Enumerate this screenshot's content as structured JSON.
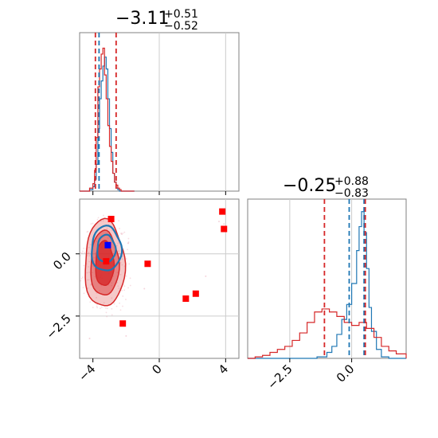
{
  "chart_data": [
    {
      "type": "histogram",
      "panel": "marginal-param-1",
      "title": {
        "value": "−3.11",
        "upper": "+0.51",
        "lower": "−0.52"
      },
      "xlim": [
        -4.8,
        4.8
      ],
      "grid": true,
      "series": [
        {
          "color": "#1f77b4",
          "style": "step",
          "bins": [
            -4.8,
            -4.5,
            -4.2,
            -4.0,
            -3.9,
            -3.8,
            -3.7,
            -3.6,
            -3.5,
            -3.4,
            -3.3,
            -3.2,
            -3.1,
            -3.0,
            -2.9,
            -2.8,
            -2.7,
            -2.6,
            -2.5,
            -2.4,
            -2.3,
            -2.1,
            -1.8,
            -1.5
          ],
          "counts": [
            0,
            0,
            0.01,
            0.03,
            0.08,
            0.18,
            0.42,
            0.62,
            0.74,
            0.84,
            0.9,
            0.82,
            0.62,
            0.42,
            0.26,
            0.12,
            0.06,
            0.02,
            0.01,
            0,
            0,
            0,
            0
          ]
        },
        {
          "color": "#d62728",
          "style": "step",
          "bins": [
            -4.8,
            -4.5,
            -4.2,
            -4.0,
            -3.9,
            -3.8,
            -3.7,
            -3.6,
            -3.5,
            -3.4,
            -3.3,
            -3.2,
            -3.1,
            -3.0,
            -2.9,
            -2.8,
            -2.7,
            -2.6,
            -2.5,
            -2.4,
            -2.3,
            -2.1,
            -1.8,
            -1.5
          ],
          "counts": [
            0,
            0,
            0.02,
            0.05,
            0.14,
            0.36,
            0.7,
            0.82,
            0.92,
            0.96,
            0.78,
            0.62,
            0.44,
            0.3,
            0.2,
            0.12,
            0.06,
            0.04,
            0.02,
            0.01,
            0,
            0,
            0
          ]
        }
      ],
      "vlines": [
        {
          "x": -3.85,
          "color": "#d62728"
        },
        {
          "x": -3.63,
          "color": "#1f77b4"
        },
        {
          "x": -2.6,
          "color": "#d62728"
        }
      ]
    },
    {
      "type": "scatter",
      "panel": "joint",
      "xlim": [
        -4.8,
        4.8
      ],
      "ylim": [
        -4.2,
        2.2
      ],
      "xticks": [
        "−4",
        "0",
        "4"
      ],
      "yticks": [
        "0.0",
        "−2.5"
      ],
      "xtick_values": [
        -4,
        0,
        4
      ],
      "ytick_values": [
        0,
        -2.5
      ],
      "grid": true,
      "contours": [
        {
          "color": "#d62728",
          "center": [
            -3.3,
            -0.4
          ],
          "radii": [
            [
              1.2,
              1.75
            ],
            [
              0.85,
              1.3
            ],
            [
              0.55,
              0.9
            ]
          ],
          "alphas": [
            0.25,
            0.45,
            0.8
          ]
        },
        {
          "color": "#1f77b4",
          "center": [
            -3.2,
            0.2
          ],
          "radii": [
            [
              0.9,
              0.9
            ],
            [
              0.55,
              0.55
            ]
          ],
          "alphas": [
            0.25,
            0.45
          ]
        }
      ],
      "points": [
        {
          "x": 3.8,
          "y": 1.7,
          "color": "#ff0000"
        },
        {
          "x": 3.9,
          "y": 1.0,
          "color": "#ff0000"
        },
        {
          "x": -2.9,
          "y": 1.4,
          "color": "#ff0000"
        },
        {
          "x": -0.7,
          "y": -0.4,
          "color": "#ff0000"
        },
        {
          "x": -3.2,
          "y": -0.3,
          "color": "#ff0000"
        },
        {
          "x": 2.2,
          "y": -1.6,
          "color": "#ff0000"
        },
        {
          "x": 1.6,
          "y": -1.8,
          "color": "#ff0000"
        },
        {
          "x": -2.2,
          "y": -2.8,
          "color": "#ff0000"
        },
        {
          "x": -3.1,
          "y": 0.35,
          "color": "#0000ff"
        }
      ]
    },
    {
      "type": "histogram",
      "panel": "marginal-param-2",
      "title": {
        "value": "−0.25",
        "upper": "+0.88",
        "lower": "−0.83"
      },
      "xlim": [
        -4.2,
        2.2
      ],
      "xticks": [
        "−2.5",
        "0.0"
      ],
      "xtick_values": [
        -2.5,
        0
      ],
      "grid": true,
      "series": [
        {
          "color": "#1f77b4",
          "style": "step",
          "bins": [
            -4.2,
            -3.6,
            -3.0,
            -2.4,
            -1.8,
            -1.4,
            -1.0,
            -0.8,
            -0.6,
            -0.4,
            -0.2,
            0.0,
            0.2,
            0.3,
            0.4,
            0.5,
            0.6,
            0.7,
            0.8,
            1.0,
            1.2,
            1.5,
            2.2
          ],
          "counts": [
            0,
            0,
            0,
            0,
            0,
            0.01,
            0.04,
            0.08,
            0.16,
            0.26,
            0.36,
            0.5,
            0.72,
            0.88,
            0.98,
            0.84,
            0.6,
            0.34,
            0.18,
            0.06,
            0.01,
            0
          ]
        },
        {
          "color": "#d62728",
          "style": "step",
          "bins": [
            -4.2,
            -3.9,
            -3.6,
            -3.3,
            -3.0,
            -2.7,
            -2.4,
            -2.1,
            -1.8,
            -1.5,
            -1.2,
            -0.9,
            -0.6,
            -0.3,
            0.0,
            0.3,
            0.6,
            0.9,
            1.2,
            1.5,
            1.8,
            2.2
          ],
          "counts": [
            0.0,
            0.01,
            0.02,
            0.04,
            0.06,
            0.08,
            0.12,
            0.17,
            0.24,
            0.31,
            0.33,
            0.31,
            0.28,
            0.24,
            0.22,
            0.24,
            0.2,
            0.14,
            0.08,
            0.05,
            0.03
          ]
        }
      ],
      "vlines": [
        {
          "x": -1.1,
          "color": "#d62728"
        },
        {
          "x": -0.1,
          "color": "#1f77b4"
        },
        {
          "x": 0.5,
          "color": "#1f77b4"
        },
        {
          "x": 0.55,
          "color": "#d62728"
        }
      ]
    }
  ]
}
